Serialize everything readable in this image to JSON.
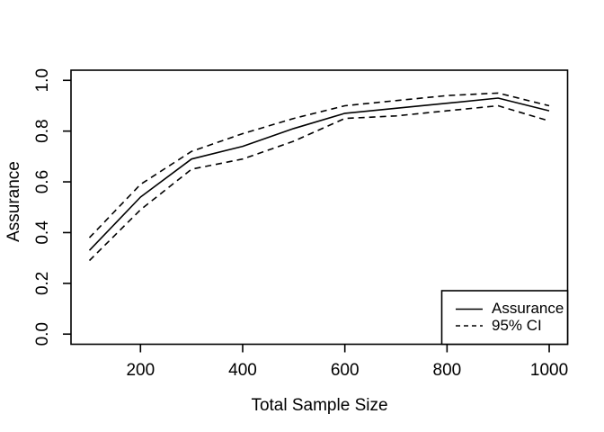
{
  "figure": {
    "background": "#ffffff",
    "line_color": "#000000",
    "text_color": "#000000"
  },
  "chart_data": {
    "type": "line",
    "title": "",
    "xlabel": "Total Sample Size",
    "ylabel": "Assurance",
    "x": [
      100,
      200,
      300,
      400,
      500,
      600,
      700,
      800,
      900,
      1000
    ],
    "series": [
      {
        "name": "Assurance",
        "style": "solid",
        "values": [
          0.33,
          0.54,
          0.69,
          0.74,
          0.81,
          0.87,
          0.89,
          0.91,
          0.93,
          0.88
        ]
      },
      {
        "name": "95% CI upper",
        "style": "dashed",
        "values": [
          0.38,
          0.59,
          0.72,
          0.79,
          0.85,
          0.9,
          0.92,
          0.94,
          0.95,
          0.9
        ]
      },
      {
        "name": "95% CI lower",
        "style": "dashed",
        "values": [
          0.29,
          0.49,
          0.65,
          0.69,
          0.76,
          0.85,
          0.86,
          0.88,
          0.9,
          0.84
        ]
      }
    ],
    "xlim": [
      100,
      1000
    ],
    "ylim": [
      0,
      1
    ],
    "axis_expansion": 0.04,
    "x_ticks": [
      200,
      400,
      600,
      800,
      1000
    ],
    "x_tick_labels": [
      "200",
      "400",
      "600",
      "800",
      "1000"
    ],
    "y_ticks": [
      0.0,
      0.2,
      0.4,
      0.6,
      0.8,
      1.0
    ],
    "y_tick_labels": [
      "0.0",
      "0.2",
      "0.4",
      "0.6",
      "0.8",
      "1.0"
    ],
    "grid": false,
    "legend": {
      "position": "bottomright",
      "entries": [
        {
          "label": "Assurance",
          "style": "solid"
        },
        {
          "label": "95% CI",
          "style": "dashed"
        }
      ]
    }
  }
}
